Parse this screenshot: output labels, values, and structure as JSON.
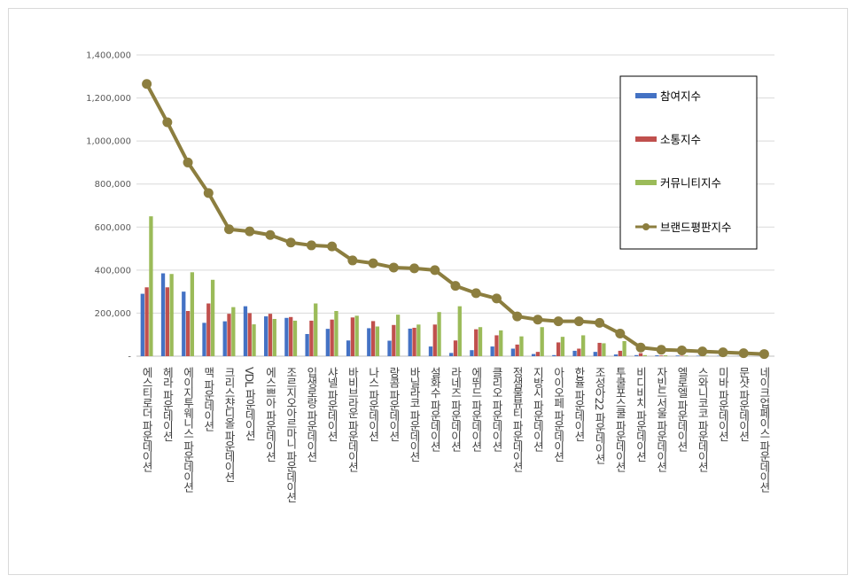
{
  "chart_data": {
    "type": "bar",
    "categories": [
      "에스티로더 파운데이션",
      "헤라 파운데이션",
      "에이지투웨니스 파운데이션",
      "맥 파운데이션",
      "크리스챤디올 파운데이션",
      "VDL 파운데이션",
      "에스쁘아 파운데이션",
      "조르지오아르마니 파운데이션",
      "입생로랑 파운데이션",
      "샤넬 파운데이션",
      "바비브라운 파운데이션",
      "나스 파운데이션",
      "랑콤 파운데이션",
      "바닐라코 파운데이션",
      "설화수 파운데이션",
      "라네즈 파운데이션",
      "에뛰드 파운데이션",
      "클리오 파운데이션",
      "정샘물뷰티 파운데이션",
      "지방시 파운데이션",
      "아이오페 파운데이션",
      "한율 파운데이션",
      "조성아22 파운데이션",
      "투쿨포스쿨 파운데이션",
      "비디비치 파운데이션",
      "자빈드서울 파운데이션",
      "엘로엘 파운데이션",
      "스와니코코 파운데이션",
      "미바 파운데이션",
      "문샷 파운데이션",
      "네이크업페이스 파운데이션"
    ],
    "series": [
      {
        "name": "참여지수",
        "color": "#4472c4",
        "kind": "bar",
        "values": [
          290000,
          385000,
          300000,
          155000,
          162000,
          232000,
          185000,
          178000,
          103000,
          127000,
          73000,
          130000,
          72000,
          128000,
          45000,
          15000,
          28000,
          45000,
          35000,
          10000,
          5000,
          25000,
          20000,
          8000,
          5000,
          4000,
          3000,
          2000,
          1500,
          1000,
          500
        ]
      },
      {
        "name": "소통지수",
        "color": "#c0504d",
        "kind": "bar",
        "values": [
          320000,
          320000,
          210000,
          245000,
          197000,
          200000,
          197000,
          182000,
          165000,
          170000,
          180000,
          163000,
          145000,
          132000,
          147000,
          73000,
          125000,
          97000,
          54000,
          20000,
          64000,
          35000,
          62000,
          25000,
          14000,
          3000,
          2000,
          1500,
          1000,
          1000,
          500
        ]
      },
      {
        "name": "커뮤니티지수",
        "color": "#9bbb59",
        "kind": "bar",
        "values": [
          650000,
          382000,
          390000,
          355000,
          228000,
          148000,
          173000,
          165000,
          245000,
          210000,
          188000,
          138000,
          193000,
          147000,
          205000,
          232000,
          135000,
          120000,
          92000,
          135000,
          90000,
          97000,
          60000,
          70000,
          5000,
          4000,
          3000,
          2000,
          1500,
          1000,
          500
        ]
      },
      {
        "name": "브랜드평판지수",
        "color": "#8c7e3f",
        "kind": "line",
        "values": [
          1265000,
          1087000,
          900000,
          758000,
          590000,
          580000,
          563000,
          528000,
          515000,
          510000,
          445000,
          432000,
          412000,
          408000,
          400000,
          327000,
          293000,
          268000,
          185000,
          170000,
          162000,
          162000,
          155000,
          105000,
          40000,
          30000,
          27000,
          22000,
          18000,
          14000,
          10000
        ]
      }
    ],
    "ylim": [
      0,
      1400000
    ],
    "yticks": [
      "-",
      "200,000",
      "400,000",
      "600,000",
      "800,000",
      "1,000,000",
      "1,200,000",
      "1,400,000"
    ],
    "ytick_values": [
      0,
      200000,
      400000,
      600000,
      800000,
      1000000,
      1200000,
      1400000
    ],
    "grid": true,
    "legend_position": "top-right"
  }
}
